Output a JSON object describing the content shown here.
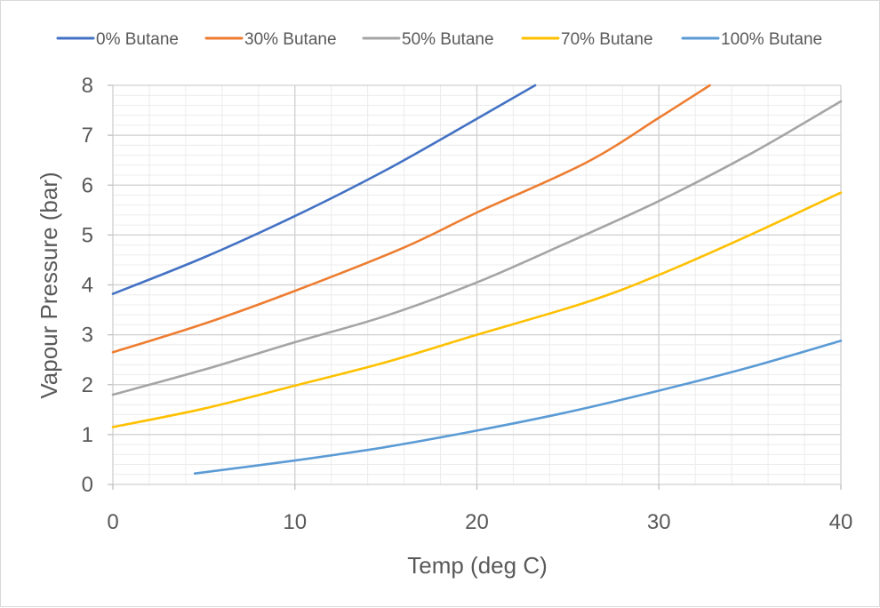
{
  "chart_data": {
    "type": "line",
    "title": "",
    "xlabel": "Temp (deg C)",
    "ylabel": "Vapour Pressure (bar)",
    "xlim": [
      0,
      40
    ],
    "ylim": [
      0,
      8
    ],
    "x_major_ticks": [
      0,
      10,
      20,
      30,
      40
    ],
    "x_minor_step": 2,
    "y_major_ticks": [
      0,
      1,
      2,
      3,
      4,
      5,
      6,
      7,
      8
    ],
    "y_minor_step": 0.2,
    "grid": true,
    "legend_position": "top",
    "series": [
      {
        "name": "0% Butane",
        "color": "#4472C4",
        "points": [
          [
            0,
            3.82
          ],
          [
            5,
            4.55
          ],
          [
            10,
            5.38
          ],
          [
            15,
            6.3
          ],
          [
            20,
            7.33
          ],
          [
            23.2,
            8.0
          ]
        ]
      },
      {
        "name": "30% Butane",
        "color": "#ED7D31",
        "points": [
          [
            0,
            2.65
          ],
          [
            5,
            3.22
          ],
          [
            10,
            3.88
          ],
          [
            16,
            4.75
          ],
          [
            20,
            5.45
          ],
          [
            26,
            6.45
          ],
          [
            30,
            7.35
          ],
          [
            32.8,
            8.0
          ]
        ]
      },
      {
        "name": "50% Butane",
        "color": "#A5A5A5",
        "points": [
          [
            0,
            1.8
          ],
          [
            5,
            2.3
          ],
          [
            10,
            2.85
          ],
          [
            15,
            3.38
          ],
          [
            20,
            4.05
          ],
          [
            25,
            4.85
          ],
          [
            30,
            5.68
          ],
          [
            35,
            6.62
          ],
          [
            40,
            7.68
          ]
        ]
      },
      {
        "name": "70% Butane",
        "color": "#FFC000",
        "points": [
          [
            0,
            1.15
          ],
          [
            5,
            1.52
          ],
          [
            10,
            1.98
          ],
          [
            15,
            2.45
          ],
          [
            20,
            3.0
          ],
          [
            26,
            3.65
          ],
          [
            30,
            4.2
          ],
          [
            35,
            5.0
          ],
          [
            40,
            5.85
          ]
        ]
      },
      {
        "name": "100% Butane",
        "color": "#5B9BD5",
        "points": [
          [
            4.5,
            0.22
          ],
          [
            10,
            0.48
          ],
          [
            15,
            0.75
          ],
          [
            20,
            1.08
          ],
          [
            25,
            1.45
          ],
          [
            30,
            1.88
          ],
          [
            35,
            2.35
          ],
          [
            40,
            2.88
          ]
        ]
      }
    ]
  }
}
